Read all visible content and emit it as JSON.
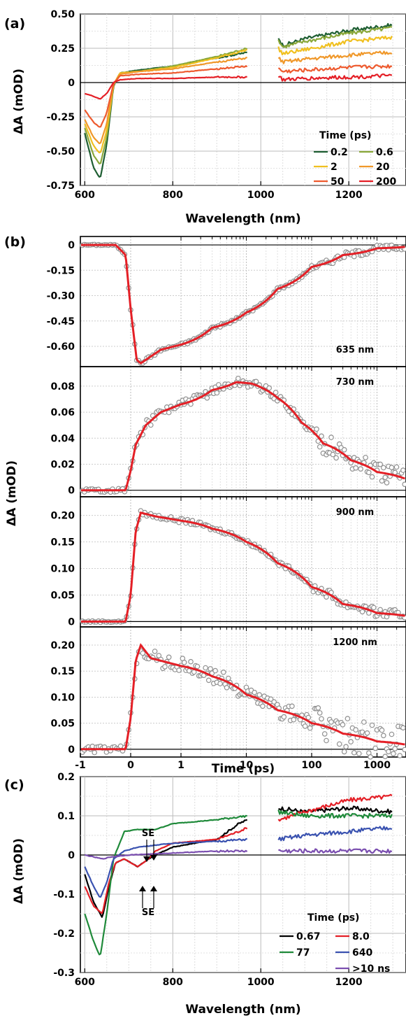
{
  "panels": {
    "a": {
      "label": "(a)",
      "xlabel": "Wavelength (nm)",
      "ylabel": "ΔA (mOD)"
    },
    "b": {
      "label": "(b)",
      "xlabel": "Time (ps)",
      "ylabel": "ΔA (mOD)"
    },
    "c": {
      "label": "(c)",
      "xlabel": "Wavelength (nm)",
      "ylabel": "ΔA (mOD)"
    }
  },
  "chart_data": [
    {
      "panel": "a",
      "type": "line",
      "xlim": [
        590,
        1330
      ],
      "ylim": [
        -0.75,
        0.5
      ],
      "x_ticks": [
        "600",
        "800",
        "1000",
        "1200"
      ],
      "y_ticks": [
        "0.50",
        "0.25",
        "0",
        "-0.25",
        "-0.50",
        "-0.75"
      ],
      "grid": true,
      "legend": {
        "title": "Time (ps)",
        "placement": "lower-right"
      },
      "gap": [
        975,
        1035
      ],
      "series": [
        {
          "name": "0.2",
          "color": "#1e5e32",
          "values": [
            [
              600,
              -0.37
            ],
            [
              620,
              -0.62
            ],
            [
              635,
              -0.7
            ],
            [
              650,
              -0.45
            ],
            [
              665,
              -0.03
            ],
            [
              680,
              0.07
            ],
            [
              720,
              0.09
            ],
            [
              800,
              0.12
            ],
            [
              900,
              0.18
            ],
            [
              970,
              0.22
            ],
            [
              1040,
              0.33
            ],
            [
              1050,
              0.27
            ],
            [
              1100,
              0.32
            ],
            [
              1200,
              0.38
            ],
            [
              1300,
              0.42
            ]
          ]
        },
        {
          "name": "0.6",
          "color": "#8aa83a",
          "values": [
            [
              600,
              -0.33
            ],
            [
              620,
              -0.53
            ],
            [
              635,
              -0.6
            ],
            [
              650,
              -0.4
            ],
            [
              665,
              -0.02
            ],
            [
              680,
              0.07
            ],
            [
              720,
              0.08
            ],
            [
              800,
              0.12
            ],
            [
              900,
              0.19
            ],
            [
              970,
              0.25
            ],
            [
              1040,
              0.31
            ],
            [
              1050,
              0.26
            ],
            [
              1100,
              0.3
            ],
            [
              1200,
              0.36
            ],
            [
              1300,
              0.4
            ]
          ]
        },
        {
          "name": "2",
          "color": "#f0c020",
          "values": [
            [
              600,
              -0.3
            ],
            [
              620,
              -0.46
            ],
            [
              635,
              -0.52
            ],
            [
              650,
              -0.35
            ],
            [
              665,
              -0.02
            ],
            [
              680,
              0.07
            ],
            [
              720,
              0.08
            ],
            [
              800,
              0.11
            ],
            [
              900,
              0.18
            ],
            [
              970,
              0.24
            ],
            [
              1040,
              0.25
            ],
            [
              1050,
              0.21
            ],
            [
              1100,
              0.24
            ],
            [
              1200,
              0.3
            ],
            [
              1300,
              0.33
            ]
          ]
        },
        {
          "name": "20",
          "color": "#f0982a",
          "values": [
            [
              600,
              -0.27
            ],
            [
              620,
              -0.4
            ],
            [
              635,
              -0.45
            ],
            [
              650,
              -0.3
            ],
            [
              665,
              -0.01
            ],
            [
              680,
              0.06
            ],
            [
              720,
              0.08
            ],
            [
              800,
              0.1
            ],
            [
              900,
              0.15
            ],
            [
              970,
              0.18
            ],
            [
              1040,
              0.18
            ],
            [
              1050,
              0.15
            ],
            [
              1100,
              0.17
            ],
            [
              1200,
              0.2
            ],
            [
              1300,
              0.22
            ]
          ]
        },
        {
          "name": "50",
          "color": "#ee5a2e",
          "values": [
            [
              600,
              -0.2
            ],
            [
              620,
              -0.29
            ],
            [
              635,
              -0.33
            ],
            [
              650,
              -0.22
            ],
            [
              665,
              -0.01
            ],
            [
              680,
              0.05
            ],
            [
              720,
              0.06
            ],
            [
              800,
              0.07
            ],
            [
              900,
              0.1
            ],
            [
              970,
              0.12
            ],
            [
              1040,
              0.1
            ],
            [
              1050,
              0.08
            ],
            [
              1100,
              0.09
            ],
            [
              1200,
              0.11
            ],
            [
              1300,
              0.12
            ]
          ]
        },
        {
          "name": "200",
          "color": "#e41f26",
          "values": [
            [
              600,
              -0.08
            ],
            [
              620,
              -0.1
            ],
            [
              635,
              -0.12
            ],
            [
              650,
              -0.08
            ],
            [
              665,
              0.0
            ],
            [
              680,
              0.02
            ],
            [
              720,
              0.03
            ],
            [
              800,
              0.03
            ],
            [
              900,
              0.04
            ],
            [
              970,
              0.04
            ],
            [
              1040,
              0.05
            ],
            [
              1050,
              0.02
            ],
            [
              1100,
              0.03
            ],
            [
              1200,
              0.04
            ],
            [
              1300,
              0.05
            ]
          ]
        }
      ]
    },
    {
      "panel": "b1",
      "type": "scatter",
      "annotation": "635 nm",
      "ylim": [
        -0.72,
        0.05
      ],
      "y_ticks": [
        "0",
        "-0.15",
        "-0.30",
        "-0.45",
        "-0.60"
      ],
      "x_scale": "linear to 1 ps, log beyond",
      "fit": [
        [
          -1,
          0
        ],
        [
          -0.3,
          0
        ],
        [
          -0.1,
          -0.06
        ],
        [
          0.0,
          -0.38
        ],
        [
          0.12,
          -0.68
        ],
        [
          0.2,
          -0.7
        ],
        [
          0.6,
          -0.62
        ],
        [
          1,
          -0.59
        ],
        [
          3,
          -0.49
        ],
        [
          10,
          -0.4
        ],
        [
          30,
          -0.26
        ],
        [
          100,
          -0.13
        ],
        [
          300,
          -0.06
        ],
        [
          1000,
          -0.02
        ],
        [
          3000,
          -0.01
        ]
      ],
      "fit_color": "#e41f26",
      "points_color": "#909090"
    },
    {
      "panel": "b2",
      "type": "scatter",
      "annotation": "730 nm",
      "ylim": [
        -0.005,
        0.095
      ],
      "y_ticks": [
        "0.08",
        "0.06",
        "0.04",
        "0.02",
        "0"
      ],
      "fit": [
        [
          -1,
          0
        ],
        [
          -0.1,
          0
        ],
        [
          0.0,
          0.015
        ],
        [
          0.1,
          0.035
        ],
        [
          0.3,
          0.05
        ],
        [
          0.6,
          0.06
        ],
        [
          1,
          0.066
        ],
        [
          3,
          0.077
        ],
        [
          7,
          0.083
        ],
        [
          12,
          0.082
        ],
        [
          30,
          0.071
        ],
        [
          70,
          0.052
        ],
        [
          150,
          0.036
        ],
        [
          400,
          0.023
        ],
        [
          1000,
          0.014
        ],
        [
          3000,
          0.008
        ]
      ],
      "fit_color": "#e41f26",
      "points_color": "#909090"
    },
    {
      "panel": "b3",
      "type": "scatter",
      "annotation": "900 nm",
      "ylim": [
        -0.01,
        0.235
      ],
      "y_ticks": [
        "0.20",
        "0.15",
        "0.10",
        "0.05",
        "0"
      ],
      "fit": [
        [
          -1,
          0
        ],
        [
          -0.1,
          0
        ],
        [
          0.0,
          0.05
        ],
        [
          0.1,
          0.17
        ],
        [
          0.2,
          0.205
        ],
        [
          0.5,
          0.198
        ],
        [
          1,
          0.19
        ],
        [
          3,
          0.175
        ],
        [
          10,
          0.15
        ],
        [
          30,
          0.11
        ],
        [
          100,
          0.065
        ],
        [
          300,
          0.033
        ],
        [
          1000,
          0.016
        ],
        [
          3000,
          0.01
        ]
      ],
      "fit_color": "#e41f26",
      "points_color": "#909090"
    },
    {
      "panel": "b4",
      "type": "scatter",
      "annotation": "1200 nm",
      "ylim": [
        -0.015,
        0.235
      ],
      "y_ticks": [
        "0.20",
        "0.15",
        "0.10",
        "0.05",
        "0"
      ],
      "x_ticks": [
        "-1",
        "0",
        "1",
        "10",
        "100",
        "1000"
      ],
      "fit": [
        [
          -1,
          0
        ],
        [
          -0.1,
          0
        ],
        [
          0.0,
          0.06
        ],
        [
          0.1,
          0.17
        ],
        [
          0.2,
          0.2
        ],
        [
          0.4,
          0.175
        ],
        [
          1,
          0.16
        ],
        [
          3,
          0.14
        ],
        [
          10,
          0.105
        ],
        [
          30,
          0.075
        ],
        [
          100,
          0.05
        ],
        [
          300,
          0.03
        ],
        [
          1000,
          0.015
        ],
        [
          3000,
          0.008
        ]
      ],
      "fit_color": "#e41f26",
      "points_color": "#909090"
    },
    {
      "panel": "c",
      "type": "line",
      "xlim": [
        590,
        1330
      ],
      "ylim": [
        -0.3,
        0.2
      ],
      "x_ticks": [
        "600",
        "800",
        "1000",
        "1200"
      ],
      "y_ticks": [
        "0.2",
        "0.1",
        "0",
        "-0.1",
        "-0.2",
        "-0.3"
      ],
      "grid": true,
      "legend": {
        "title": "Time (ps)",
        "placement": "lower-right"
      },
      "annotations": [
        "SE",
        "SE"
      ],
      "gap": [
        975,
        1035
      ],
      "series": [
        {
          "name": "0.67",
          "color": "#000000",
          "values": [
            [
              600,
              -0.05
            ],
            [
              620,
              -0.12
            ],
            [
              640,
              -0.16
            ],
            [
              655,
              -0.08
            ],
            [
              670,
              -0.02
            ],
            [
              690,
              -0.01
            ],
            [
              720,
              -0.03
            ],
            [
              745,
              -0.01
            ],
            [
              760,
              0.0
            ],
            [
              800,
              0.02
            ],
            [
              900,
              0.04
            ],
            [
              950,
              0.08
            ],
            [
              970,
              0.09
            ],
            [
              1040,
              0.12
            ],
            [
              1100,
              0.11
            ],
            [
              1200,
              0.12
            ],
            [
              1300,
              0.11
            ]
          ]
        },
        {
          "name": "8.0",
          "color": "#e41f26",
          "values": [
            [
              600,
              -0.08
            ],
            [
              620,
              -0.13
            ],
            [
              640,
              -0.15
            ],
            [
              655,
              -0.07
            ],
            [
              670,
              -0.02
            ],
            [
              690,
              -0.01
            ],
            [
              720,
              -0.03
            ],
            [
              745,
              -0.01
            ],
            [
              760,
              0.01
            ],
            [
              800,
              0.03
            ],
            [
              900,
              0.04
            ],
            [
              950,
              0.06
            ],
            [
              970,
              0.07
            ],
            [
              1040,
              0.09
            ],
            [
              1100,
              0.11
            ],
            [
              1200,
              0.14
            ],
            [
              1300,
              0.15
            ]
          ]
        },
        {
          "name": "77",
          "color": "#1f8a3a",
          "values": [
            [
              600,
              -0.15
            ],
            [
              620,
              -0.22
            ],
            [
              635,
              -0.26
            ],
            [
              650,
              -0.15
            ],
            [
              665,
              -0.01
            ],
            [
              690,
              0.06
            ],
            [
              720,
              0.065
            ],
            [
              760,
              0.065
            ],
            [
              800,
              0.08
            ],
            [
              900,
              0.09
            ],
            [
              970,
              0.1
            ],
            [
              1040,
              0.11
            ],
            [
              1100,
              0.1
            ],
            [
              1200,
              0.1
            ],
            [
              1300,
              0.1
            ]
          ]
        },
        {
          "name": "640",
          "color": "#3a52b0",
          "values": [
            [
              600,
              -0.03
            ],
            [
              620,
              -0.08
            ],
            [
              635,
              -0.11
            ],
            [
              650,
              -0.07
            ],
            [
              665,
              -0.01
            ],
            [
              690,
              0.01
            ],
            [
              720,
              0.02
            ],
            [
              760,
              0.025
            ],
            [
              800,
              0.03
            ],
            [
              900,
              0.035
            ],
            [
              970,
              0.04
            ],
            [
              1040,
              0.04
            ],
            [
              1100,
              0.05
            ],
            [
              1200,
              0.06
            ],
            [
              1300,
              0.07
            ]
          ]
        },
        {
          "name": ">10 ns",
          "color": "#7b4fb0",
          "values": [
            [
              600,
              0.0
            ],
            [
              640,
              -0.01
            ],
            [
              660,
              -0.005
            ],
            [
              700,
              0.0
            ],
            [
              800,
              0.005
            ],
            [
              900,
              0.01
            ],
            [
              970,
              0.01
            ],
            [
              1040,
              0.01
            ],
            [
              1100,
              0.01
            ],
            [
              1200,
              0.01
            ],
            [
              1300,
              0.01
            ]
          ]
        }
      ]
    }
  ]
}
